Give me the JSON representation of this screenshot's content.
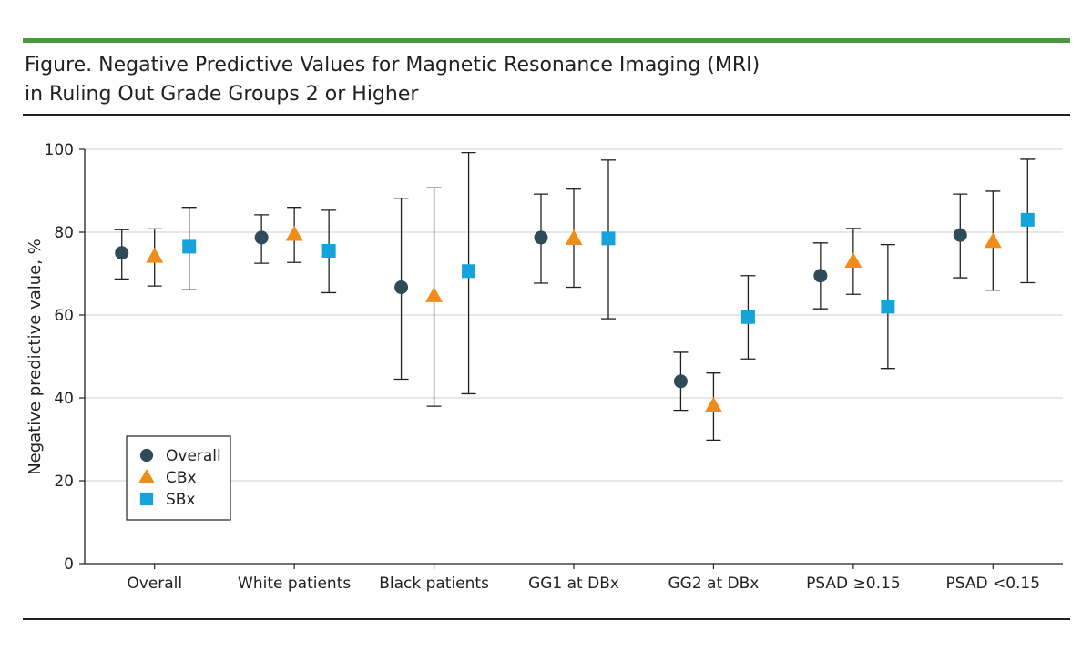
{
  "figure": {
    "title_line1": "Figure. Negative Predictive Values for Magnetic Resonance Imaging (MRI)",
    "title_line2": "in Ruling Out Grade Groups 2 or Higher"
  },
  "colors": {
    "accent_rule": "#4a9a3c",
    "overall": "#2f4b58",
    "cbx": "#ef8d1a",
    "sbx": "#14a3da",
    "grid": "#cfcfcf",
    "ink": "#231f20"
  },
  "chart_data": {
    "type": "scatter",
    "subtype": "point-with-error-bars",
    "title": "Figure. Negative Predictive Values for Magnetic Resonance Imaging (MRI) in Ruling Out Grade Groups 2 or Higher",
    "xlabel": "",
    "ylabel": "Negative predictive value, %",
    "ylim": [
      0,
      100
    ],
    "yticks": [
      0,
      20,
      40,
      60,
      80,
      100
    ],
    "ytick_labels": [
      "0",
      "20",
      "40",
      "60",
      "80",
      "100"
    ],
    "grid": "horizontal",
    "legend_position": "bottom-left",
    "categories": [
      "Overall",
      "White patients",
      "Black patients",
      "GG1 at DBx",
      "GG2 at DBx",
      "PSAD ≥0.15",
      "PSAD <0.15"
    ],
    "series": [
      {
        "name": "Overall",
        "marker": "circle",
        "color": "#2f4b58",
        "values": [
          75,
          78.7,
          66.7,
          78.7,
          44,
          69.5,
          79.3
        ],
        "lower": [
          68.7,
          72.5,
          44.5,
          67.7,
          37,
          61.5,
          69
        ],
        "upper": [
          80.6,
          84.2,
          88.2,
          89.2,
          51,
          77.4,
          89.2
        ]
      },
      {
        "name": "CBx",
        "marker": "triangle",
        "color": "#ef8d1a",
        "values": [
          74.2,
          79.5,
          64.7,
          78.5,
          38.2,
          73,
          77.8
        ],
        "lower": [
          67,
          72.7,
          38,
          66.7,
          29.8,
          65,
          66
        ],
        "upper": [
          80.8,
          86,
          90.7,
          90.4,
          46,
          80.9,
          89.9
        ]
      },
      {
        "name": "SBx",
        "marker": "square",
        "color": "#14a3da",
        "values": [
          76.5,
          75.5,
          70.6,
          78.5,
          59.5,
          62,
          83
        ],
        "lower": [
          66.1,
          65.4,
          41,
          59.1,
          49.4,
          47.1,
          67.8
        ],
        "upper": [
          86,
          85.3,
          99.2,
          97.4,
          69.5,
          77,
          97.6
        ]
      }
    ]
  }
}
